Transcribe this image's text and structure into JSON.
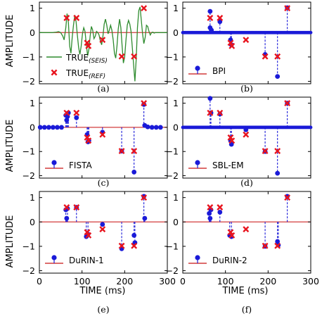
{
  "colors": {
    "true_ref": "#e8141e",
    "true_seis": "#2e8b2e",
    "estimate": "#1a1ad8",
    "baseline": "#d23c3c"
  },
  "axes": {
    "ylabel": "AMPLITUDE",
    "xlabel": "TIME (ms)",
    "xlim": [
      0,
      300
    ],
    "ylim": [
      -2.1,
      1.25
    ],
    "xticks": [
      "0",
      "100",
      "200",
      "300"
    ],
    "yticks": [
      "1",
      "0",
      "−1",
      "−2"
    ]
  },
  "chart_data": [
    {
      "type": "scatter",
      "panel": "a",
      "caption": "(a)",
      "legend": [
        {
          "label": "TRUE",
          "sub": "(SEIS)",
          "marker": "line"
        },
        {
          "label": "TRUE",
          "sub": "(REF)",
          "marker": "x"
        }
      ],
      "series": [
        {
          "name": "TRUE(REF)",
          "x": [
            64,
            87,
            112,
            115,
            148,
            193,
            222,
            245
          ],
          "y": [
            0.6,
            0.6,
            -0.42,
            -0.55,
            -0.3,
            -0.98,
            -0.98,
            1.0
          ]
        },
        {
          "name": "TRUE(SEIS)",
          "x": [
            0,
            10,
            20,
            30,
            40,
            45,
            50,
            55,
            58,
            62,
            65,
            68,
            71,
            74,
            77,
            80,
            83,
            86,
            89,
            92,
            95,
            98,
            101,
            104,
            107,
            110,
            113,
            116,
            119,
            122,
            125,
            128,
            131,
            134,
            137,
            140,
            143,
            146,
            149,
            152,
            155,
            158,
            161,
            164,
            167,
            170,
            173,
            176,
            179,
            182,
            185,
            188,
            191,
            194,
            197,
            200,
            203,
            206,
            209,
            212,
            215,
            218,
            221,
            224,
            227,
            230,
            233,
            236,
            239,
            242,
            245,
            248,
            251,
            254,
            257,
            260,
            263,
            266,
            269,
            272,
            275,
            278,
            281,
            284,
            290,
            300
          ],
          "y": [
            0,
            0,
            0,
            0,
            0.02,
            0.04,
            0,
            -0.15,
            -0.3,
            0.2,
            0.78,
            0.4,
            -0.55,
            -0.85,
            -0.2,
            0.3,
            0.72,
            0.45,
            -0.1,
            -0.6,
            -0.9,
            -0.55,
            -0.05,
            0.2,
            0.05,
            -0.45,
            -0.95,
            -0.7,
            -0.15,
            0.25,
            0.1,
            -0.25,
            -0.15,
            0.05,
            0.0,
            -0.1,
            -0.35,
            -0.5,
            -0.15,
            0.35,
            0.55,
            0.3,
            -0.05,
            0.1,
            0.3,
            0.1,
            -0.3,
            -0.85,
            -1.05,
            -0.55,
            0.15,
            0.55,
            0.2,
            -0.55,
            -1.25,
            -1.0,
            -0.3,
            0.3,
            0.5,
            0.35,
            0.05,
            -0.65,
            -1.35,
            -2.0,
            -1.1,
            0.2,
            0.9,
            1.05,
            0.5,
            -0.05,
            -0.45,
            -0.2,
            0.3,
            0.25,
            0.05,
            -0.1,
            0.0,
            0.02,
            -0.02,
            0.0,
            0,
            0,
            0,
            0,
            0,
            0
          ]
        }
      ]
    },
    {
      "type": "scatter",
      "panel": "b",
      "caption": "(b)",
      "legend": [
        {
          "label": "BPI",
          "marker": "stem"
        }
      ],
      "series": [
        {
          "name": "TRUE(REF)",
          "x": [
            64,
            87,
            112,
            115,
            148,
            193,
            222,
            245
          ],
          "y": [
            0.6,
            0.6,
            -0.42,
            -0.55,
            -0.3,
            -0.98,
            -0.98,
            1.0
          ]
        },
        {
          "name": "BPI",
          "x": [
            64,
            64,
            67,
            87,
            112,
            114,
            193,
            222,
            245
          ],
          "y": [
            0.87,
            0.2,
            0.1,
            0.45,
            -0.3,
            -0.5,
            -0.9,
            -1.8,
            1.02
          ]
        }
      ]
    },
    {
      "type": "scatter",
      "panel": "c",
      "caption": "(c)",
      "legend": [
        {
          "label": "FISTA",
          "marker": "stem"
        }
      ],
      "series": [
        {
          "name": "TRUE(REF)",
          "x": [
            64,
            87,
            112,
            115,
            148,
            193,
            222,
            245
          ],
          "y": [
            0.6,
            0.6,
            -0.42,
            -0.55,
            -0.3,
            -0.98,
            -0.98,
            1.0
          ]
        },
        {
          "name": "FISTA",
          "x": [
            2,
            12,
            22,
            32,
            42,
            52,
            62,
            64,
            66,
            68,
            87,
            112,
            114,
            116,
            148,
            193,
            222,
            245,
            247,
            254,
            264,
            274,
            284
          ],
          "y": [
            0,
            0,
            0,
            0,
            0,
            0,
            0.5,
            0.3,
            0.45,
            0.6,
            0.4,
            -0.3,
            -0.6,
            -0.55,
            -0.2,
            -0.98,
            -1.85,
            0.95,
            0.08,
            0.02,
            0,
            0,
            0
          ]
        }
      ]
    },
    {
      "type": "scatter",
      "panel": "d",
      "caption": "(d)",
      "legend": [
        {
          "label": "SBL-EM",
          "marker": "stem"
        }
      ],
      "series": [
        {
          "name": "TRUE(REF)",
          "x": [
            64,
            87,
            112,
            115,
            148,
            193,
            222,
            245
          ],
          "y": [
            0.6,
            0.6,
            -0.42,
            -0.55,
            -0.3,
            -0.98,
            -0.98,
            1.0
          ]
        },
        {
          "name": "SBL-EM",
          "x": [
            64,
            66,
            87,
            112,
            114,
            148,
            193,
            222,
            245
          ],
          "y": [
            1.2,
            0.6,
            0.55,
            -0.55,
            -0.7,
            -0.1,
            -1.0,
            -1.9,
            1.0
          ]
        }
      ]
    },
    {
      "type": "scatter",
      "panel": "e",
      "caption": "(e)",
      "legend": [
        {
          "label": "DuRIN-1",
          "marker": "stem"
        }
      ],
      "series": [
        {
          "name": "TRUE(REF)",
          "x": [
            64,
            87,
            112,
            115,
            148,
            193,
            222,
            245
          ],
          "y": [
            0.6,
            0.6,
            -0.42,
            -0.55,
            -0.3,
            -0.98,
            -0.98,
            1.0
          ]
        },
        {
          "name": "DuRIN-1",
          "x": [
            62,
            64,
            66,
            87,
            110,
            114,
            148,
            193,
            222,
            224,
            245,
            247
          ],
          "y": [
            0.5,
            0.15,
            0.55,
            0.6,
            -0.6,
            -0.5,
            -0.1,
            -1.1,
            -0.55,
            -0.85,
            1.05,
            0.15
          ]
        }
      ]
    },
    {
      "type": "scatter",
      "panel": "f",
      "caption": "(f)",
      "legend": [
        {
          "label": "DuRIN-2",
          "marker": "stem"
        }
      ],
      "series": [
        {
          "name": "TRUE(REF)",
          "x": [
            64,
            87,
            112,
            115,
            148,
            193,
            222,
            245
          ],
          "y": [
            0.6,
            0.6,
            -0.42,
            -0.55,
            -0.3,
            -0.98,
            -0.98,
            1.0
          ]
        },
        {
          "name": "DuRIN-2",
          "x": [
            62,
            64,
            66,
            87,
            110,
            114,
            193,
            222,
            224,
            245
          ],
          "y": [
            0.35,
            0.15,
            0.5,
            0.4,
            -0.55,
            -0.6,
            -1.0,
            -0.8,
            -0.95,
            1.05
          ]
        }
      ]
    }
  ]
}
